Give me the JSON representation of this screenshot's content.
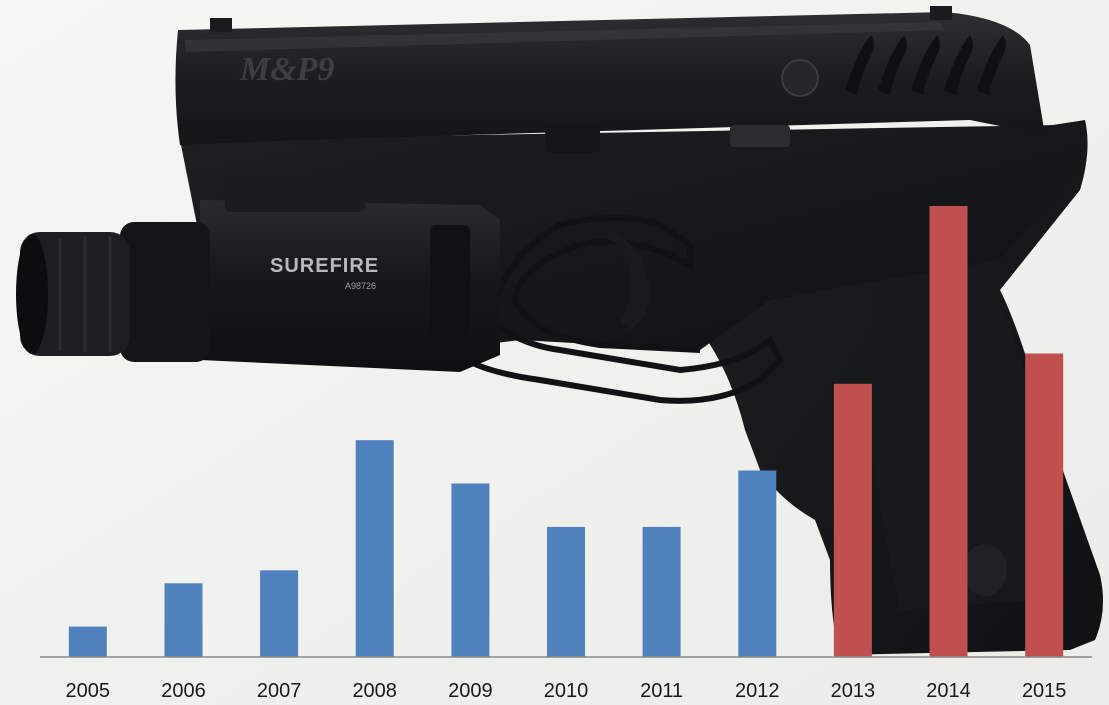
{
  "background": {
    "object": "handgun-with-weapon-light",
    "slide_marking": "M&P9",
    "light_marking": "SUREFIRE",
    "light_serial": "A98726"
  },
  "chart_data": {
    "type": "bar",
    "categories": [
      "2005",
      "2006",
      "2007",
      "2008",
      "2009",
      "2010",
      "2011",
      "2012",
      "2013",
      "2014",
      "2015"
    ],
    "values": [
      7,
      17,
      20,
      50,
      40,
      30,
      30,
      43,
      63,
      104,
      70
    ],
    "ylim": [
      0,
      110
    ],
    "grid": false,
    "legend": "none",
    "title": "",
    "xlabel": "",
    "ylabel": "",
    "colors": {
      "blue": "#4f81bd",
      "red": "#c0504d",
      "axis": "#888888"
    },
    "bar_colors": [
      "blue",
      "blue",
      "blue",
      "blue",
      "blue",
      "blue",
      "blue",
      "blue",
      "red",
      "red",
      "red"
    ]
  }
}
